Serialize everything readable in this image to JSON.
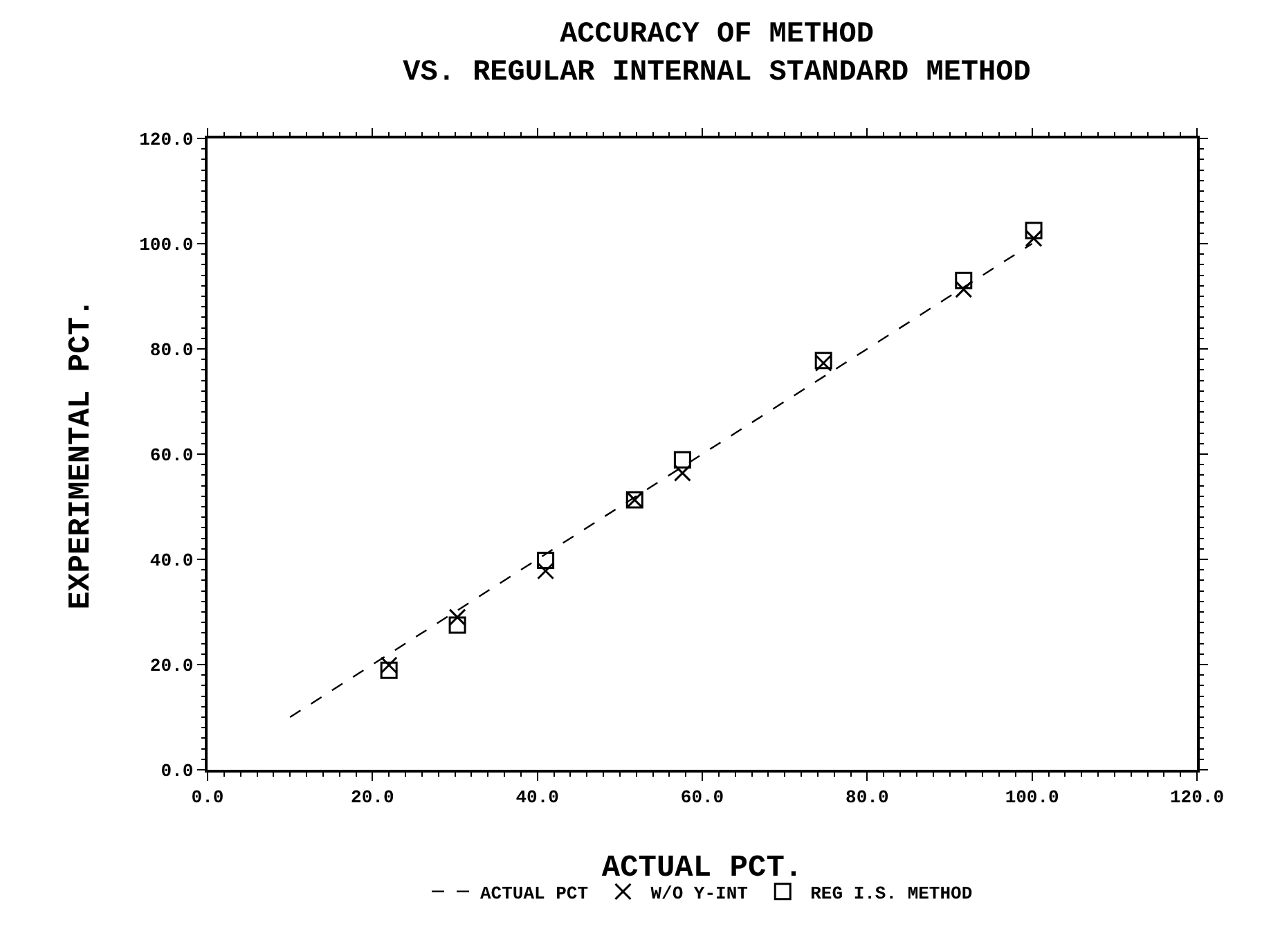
{
  "chart_data": {
    "type": "scatter",
    "title": "ACCURACY OF METHOD",
    "subtitle": "VS. REGULAR INTERNAL STANDARD METHOD",
    "xlabel": "ACTUAL PCT.",
    "ylabel": "EXPERIMENTAL PCT.",
    "xlim": [
      0,
      120
    ],
    "ylim": [
      0,
      120
    ],
    "xticks": [
      {
        "value": 0,
        "label": "0.0"
      },
      {
        "value": 20,
        "label": "20.0"
      },
      {
        "value": 40,
        "label": "40.0"
      },
      {
        "value": 60,
        "label": "60.0"
      },
      {
        "value": 80,
        "label": "80.0"
      },
      {
        "value": 100,
        "label": "100.0"
      },
      {
        "value": 120,
        "label": "120.0"
      }
    ],
    "yticks": [
      {
        "value": 0,
        "label": "0.0"
      },
      {
        "value": 20,
        "label": "20.0"
      },
      {
        "value": 40,
        "label": "40.0"
      },
      {
        "value": 60,
        "label": "60.0"
      },
      {
        "value": 80,
        "label": "80.0"
      },
      {
        "value": 100,
        "label": "100.0"
      },
      {
        "value": 120,
        "label": "120.0"
      }
    ],
    "grid": false,
    "legend": "bottom",
    "series": [
      {
        "name": "W/O Y-INT",
        "color": "#000000",
        "marker": "cross",
        "x": [
          22,
          30.3,
          41,
          51.8,
          57.6,
          74.7,
          91.7,
          100.2
        ],
        "values": [
          19.9,
          29,
          37.8,
          51.3,
          56.4,
          77.3,
          91.3,
          101
        ]
      },
      {
        "name": "REG I.S. METHOD",
        "color": "#000000",
        "marker": "square",
        "x": [
          22,
          30.3,
          41,
          51.8,
          57.6,
          74.7,
          91.7,
          100.2
        ],
        "values": [
          18.9,
          27.5,
          39.8,
          51.3,
          58.9,
          77.8,
          93,
          102.5
        ]
      },
      {
        "name": "ACTUAL PCT",
        "type": "line",
        "color": "#000000",
        "marker": "none",
        "line_style": "dashed",
        "x": [
          10,
          100
        ],
        "values": [
          10,
          100
        ]
      }
    ]
  }
}
